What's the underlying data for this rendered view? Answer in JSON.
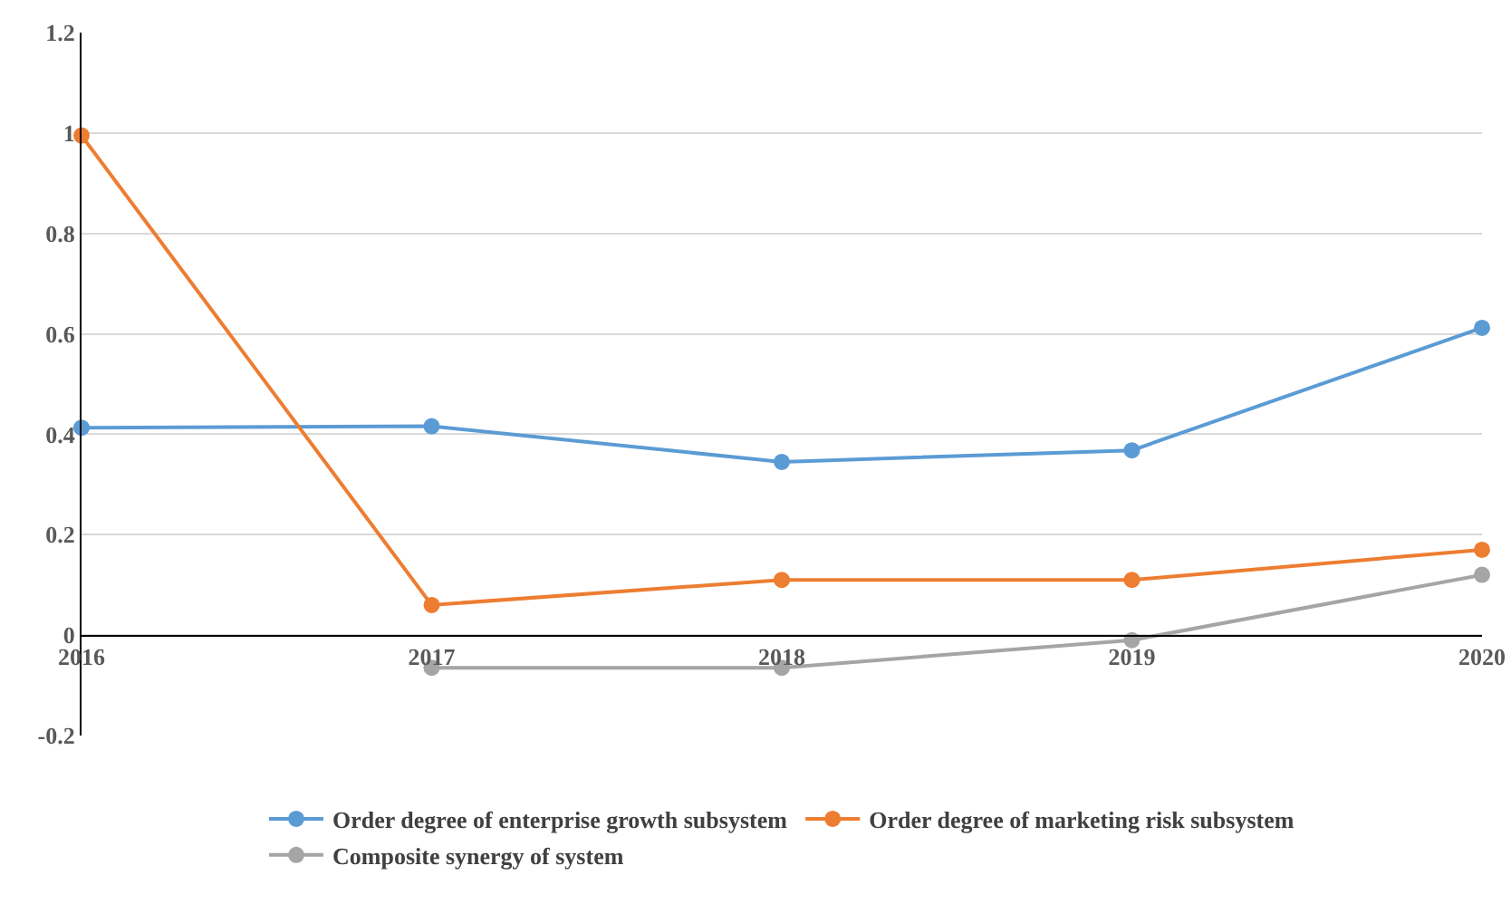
{
  "chart_data": {
    "type": "line",
    "x": [
      2016,
      2017,
      2018,
      2019,
      2020
    ],
    "xlim": [
      2016,
      2020
    ],
    "xticks": [
      2016,
      2017,
      2018,
      2019,
      2020
    ],
    "ylim": [
      -0.2,
      1.2
    ],
    "yticks": [
      -0.2,
      0,
      0.2,
      0.4,
      0.6,
      0.8,
      1,
      1.2
    ],
    "grid": "y",
    "legend": "bottom",
    "marker": "circle",
    "line_style": "solid",
    "series": [
      {
        "name": "Order degree of enterprise growth subsystem",
        "color": "#5b9bd5",
        "values": [
          0.413,
          0.416,
          0.345,
          0.368,
          0.612
        ]
      },
      {
        "name": "Order degree of marketing risk subsystem",
        "color": "#ed7d31",
        "values": [
          0.995,
          0.06,
          0.11,
          0.11,
          0.17
        ]
      },
      {
        "name": "Composite synergy of system",
        "color": "#a5a5a5",
        "values": [
          null,
          -0.065,
          -0.065,
          -0.01,
          0.12
        ]
      }
    ]
  }
}
